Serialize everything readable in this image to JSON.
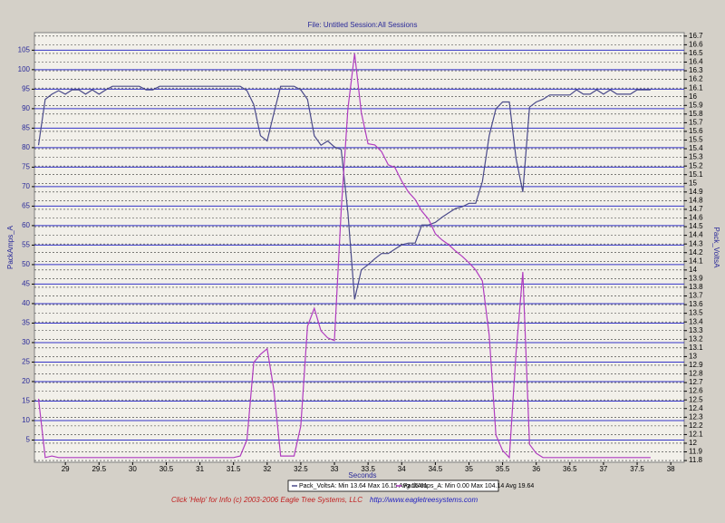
{
  "chart_data": {
    "type": "line",
    "title": "File: Untitled   Session:All Sessions",
    "xlabel": "Seconds",
    "ylabel": "PackAmps_A",
    "y2label": "Pack_VoltsA",
    "footer": "Click 'Help' for Info  (c) 2003-2006 Eagle Tree Systems, LLC",
    "footer_link": "http://www.eagletreesystems.com",
    "x": [
      28.6,
      28.7,
      28.8,
      28.9,
      29,
      29.1,
      29.2,
      29.3,
      29.4,
      29.5,
      29.6,
      29.7,
      29.8,
      29.9,
      30,
      30.1,
      30.2,
      30.3,
      30.4,
      30.5,
      30.6,
      30.7,
      30.8,
      30.9,
      31,
      31.1,
      31.2,
      31.3,
      31.4,
      31.5,
      31.6,
      31.7,
      31.8,
      31.9,
      32,
      32.1,
      32.2,
      32.3,
      32.4,
      32.5,
      32.6,
      32.7,
      32.8,
      32.9,
      33,
      33.1,
      33.2,
      33.3,
      33.4,
      33.5,
      33.6,
      33.7,
      33.8,
      33.9,
      34,
      34.1,
      34.2,
      34.3,
      34.4,
      34.5,
      34.6,
      34.7,
      34.8,
      34.9,
      35,
      35.1,
      35.2,
      35.3,
      35.4,
      35.5,
      35.6,
      35.7,
      35.8,
      35.9,
      36,
      36.1,
      36.2,
      36.3,
      36.4,
      36.5,
      36.6,
      36.7,
      36.8,
      36.9,
      37,
      37.1,
      37.2,
      37.3,
      37.4,
      37.5,
      37.6,
      37.7
    ],
    "series": [
      {
        "name": "Pack_VoltsA:  Min 13.64 Max 16.15 Avg 15.61",
        "axis": "y2",
        "color": "#4a4a8a",
        "values": [
          15.44,
          15.97,
          16.03,
          16.07,
          16.03,
          16.08,
          16.08,
          16.03,
          16.08,
          16.03,
          16.08,
          16.12,
          16.12,
          16.12,
          16.12,
          16.12,
          16.08,
          16.08,
          16.12,
          16.12,
          16.12,
          16.12,
          16.12,
          16.12,
          16.12,
          16.12,
          16.12,
          16.12,
          16.12,
          16.12,
          16.12,
          16.07,
          15.91,
          15.55,
          15.49,
          15.81,
          16.12,
          16.12,
          16.12,
          16.08,
          15.97,
          15.55,
          15.44,
          15.49,
          15.42,
          15.39,
          14.66,
          13.66,
          14.0,
          14.06,
          14.13,
          14.19,
          14.19,
          14.24,
          14.29,
          14.31,
          14.31,
          14.52,
          14.52,
          14.55,
          14.61,
          14.66,
          14.71,
          14.73,
          14.77,
          14.77,
          15.02,
          15.55,
          15.86,
          15.94,
          15.94,
          15.29,
          14.9,
          15.88,
          15.94,
          15.97,
          16.02,
          16.02,
          16.02,
          16.02,
          16.08,
          16.03,
          16.03,
          16.08,
          16.03,
          16.08,
          16.03,
          16.03,
          16.03,
          16.08,
          16.08,
          16.08
        ]
      },
      {
        "name": "PackAmps_A:  Min 0.00 Max 104.14 Avg 19.64",
        "axis": "y",
        "color": "#b03cc0",
        "values": [
          15.6,
          0.5,
          0.9,
          0.5,
          0.5,
          0.5,
          0.5,
          0.5,
          0.5,
          0.5,
          0.5,
          0.5,
          0.5,
          0.5,
          0.5,
          0.5,
          0.5,
          0.5,
          0.5,
          0.5,
          0.5,
          0.5,
          0.5,
          0.5,
          0.5,
          0.5,
          0.5,
          0.5,
          0.5,
          0.5,
          0.9,
          5.1,
          24.9,
          27,
          28.4,
          17.9,
          0.9,
          0.9,
          0.9,
          8.6,
          34.2,
          38.8,
          33,
          31.2,
          30.5,
          64,
          90,
          104.1,
          89,
          81,
          80.7,
          79,
          75.6,
          74.9,
          71.4,
          68.6,
          66.7,
          63.7,
          61.6,
          57.9,
          56.3,
          55.1,
          53.5,
          52.1,
          50.5,
          48.6,
          45.8,
          31.9,
          6.3,
          2.3,
          0.5,
          27.2,
          48.1,
          3.9,
          1.6,
          0.5,
          0.5,
          0.5,
          0.5,
          0.5,
          0.5,
          0.5,
          0.5,
          0.5,
          0.5,
          0.5,
          0.5,
          0.5,
          0.5,
          0.5,
          0.5,
          0.5
        ]
      }
    ],
    "xlim": [
      28.54,
      38.2
    ],
    "xticks": [
      29,
      29.5,
      30,
      30.5,
      31,
      31.5,
      32,
      32.5,
      33,
      33.5,
      34,
      34.5,
      35,
      35.5,
      36,
      36.5,
      37,
      37.5,
      38
    ],
    "ylim": [
      -0.7,
      109.5
    ],
    "yticks": [
      5,
      10,
      15,
      20,
      25,
      30,
      35,
      40,
      45,
      50,
      55,
      60,
      65,
      70,
      75,
      80,
      85,
      90,
      95,
      100,
      105
    ],
    "y2lim": [
      11.78,
      16.74
    ],
    "y2ticks": [
      11.8,
      11.9,
      12,
      12.1,
      12.2,
      12.3,
      12.4,
      12.5,
      12.6,
      12.7,
      12.8,
      12.9,
      13,
      13.1,
      13.2,
      13.3,
      13.4,
      13.5,
      13.6,
      13.7,
      13.8,
      13.9,
      14,
      14.1,
      14.2,
      14.3,
      14.4,
      14.5,
      14.6,
      14.7,
      14.8,
      14.9,
      15,
      15.1,
      15.2,
      15.3,
      15.4,
      15.5,
      15.6,
      15.7,
      15.8,
      15.9,
      16,
      16.1,
      16.2,
      16.3,
      16.4,
      16.5,
      16.6,
      16.7
    ],
    "grid": true,
    "grid_color": "#3434c8",
    "y2grid": true
  }
}
